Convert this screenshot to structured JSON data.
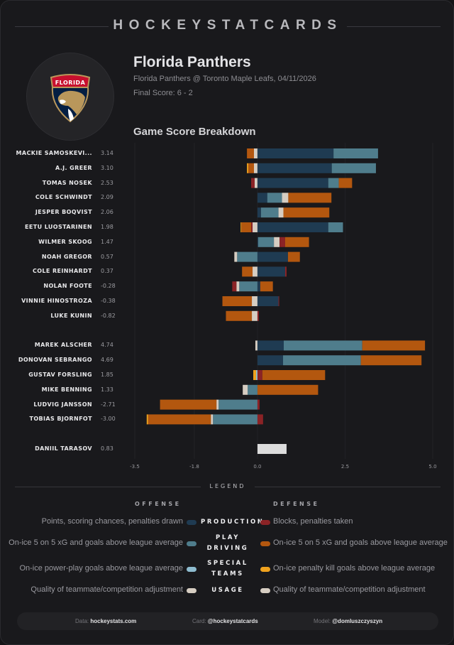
{
  "brand": "HOCKEYSTATCARDS",
  "header": {
    "team": "Florida Panthers",
    "matchup": "Florida Panthers @ Toronto Maple Leafs, 04/11/2026",
    "final_score": "Final Score: 6 - 2",
    "logo": "florida-panthers-logo",
    "logo_text": "FLORIDA"
  },
  "section_title": "Game Score Breakdown",
  "colors": {
    "off_production": "#1f3b52",
    "off_play_driving": "#4f7d8c",
    "off_special_teams": "#8ebccf",
    "off_usage": "#d6cdc2",
    "def_production": "#8b2326",
    "def_play_driving": "#b3570f",
    "def_special_teams": "#efa21e",
    "def_usage": "#d6cdc2",
    "goalie": "#dcdcdc"
  },
  "chart_data": {
    "type": "bar",
    "orientation": "horizontal-stacked-diverging",
    "title": "Game Score Breakdown",
    "xlabel": "",
    "ylabel": "",
    "xlim": [
      -3.5,
      5.0
    ],
    "xticks": [
      -3.5,
      -1.8,
      0.0,
      2.5,
      5.0
    ],
    "xtick_labels": [
      "-3.5",
      "-1.8",
      "0.0",
      "2.5",
      "5.0"
    ],
    "grid": true,
    "segment_keys": [
      "off_production",
      "off_play_driving",
      "off_special_teams",
      "off_usage",
      "def_production",
      "def_play_driving",
      "def_special_teams",
      "def_usage",
      "goalie"
    ],
    "groups": [
      {
        "name": "forwards",
        "players": [
          {
            "name": "MACKIE SAMOSKEVI...",
            "score": "3.14",
            "segments": {
              "def_play_driving": -0.2,
              "off_usage": -0.1,
              "off_production": 2.17,
              "off_play_driving": 1.27
            }
          },
          {
            "name": "A.J. GREER",
            "score": "3.10",
            "segments": {
              "def_special_teams": -0.04,
              "def_play_driving": -0.16,
              "off_usage": -0.1,
              "off_production": 2.12,
              "off_play_driving": 1.26
            }
          },
          {
            "name": "TOMAS NOSEK",
            "score": "2.53",
            "segments": {
              "def_production": -0.1,
              "off_usage": -0.08,
              "off_production": 2.02,
              "off_play_driving": 0.3,
              "def_play_driving": 0.38
            }
          },
          {
            "name": "COLE SCHWINDT",
            "score": "2.09",
            "segments": {
              "off_production": 0.28,
              "off_play_driving": 0.42,
              "off_usage": 0.18,
              "def_play_driving": 1.23
            }
          },
          {
            "name": "JESPER BOQVIST",
            "score": "2.06",
            "segments": {
              "off_production": 0.1,
              "off_play_driving": 0.5,
              "off_usage": 0.14,
              "def_play_driving": 1.31
            }
          },
          {
            "name": "EETU LUOSTARINEN",
            "score": "1.98",
            "segments": {
              "def_special_teams": -0.02,
              "def_play_driving": -0.28,
              "def_production": -0.04,
              "off_usage": -0.14,
              "off_production": 2.02,
              "off_play_driving": 0.42
            }
          },
          {
            "name": "WILMER SKOOG",
            "score": "1.47",
            "segments": {
              "off_production": 0.02,
              "off_play_driving": 0.45,
              "off_usage": 0.16,
              "def_production": 0.16,
              "def_play_driving": 0.68
            }
          },
          {
            "name": "NOAH GREGOR",
            "score": "0.57",
            "segments": {
              "off_usage": -0.08,
              "off_play_driving": -0.58,
              "off_production": 0.87,
              "def_play_driving": 0.34
            }
          },
          {
            "name": "COLE REINHARDT",
            "score": "0.37",
            "segments": {
              "def_play_driving": -0.3,
              "off_usage": -0.14,
              "off_production": 0.79,
              "def_production": 0.04
            }
          },
          {
            "name": "NOLAN FOOTE",
            "score": "-0.28",
            "segments": {
              "def_production": -0.12,
              "off_usage": -0.08,
              "off_play_driving": -0.52,
              "off_production": 0.08,
              "def_play_driving": 0.36
            }
          },
          {
            "name": "VINNIE HINOSTROZA",
            "score": "-0.38",
            "segments": {
              "def_play_driving": -0.84,
              "off_usage": -0.16,
              "off_production": 0.6,
              "def_production": 0.02
            }
          },
          {
            "name": "LUKE KUNIN",
            "score": "-0.82",
            "segments": {
              "def_play_driving": -0.74,
              "off_usage": -0.16,
              "def_production": 0.04
            }
          }
        ]
      },
      {
        "name": "defense",
        "players": [
          {
            "name": "MAREK ALSCHER",
            "score": "4.74",
            "segments": {
              "off_usage": -0.06,
              "off_production": 0.75,
              "off_play_driving": 2.24,
              "def_play_driving": 1.79
            }
          },
          {
            "name": "DONOVAN SEBRANGO",
            "score": "4.69",
            "segments": {
              "off_production": 0.73,
              "off_play_driving": 2.22,
              "def_play_driving": 1.73
            }
          },
          {
            "name": "GUSTAV FORSLING",
            "score": "1.85",
            "segments": {
              "def_special_teams": -0.08,
              "off_special_teams": -0.04,
              "def_production": 0.14,
              "def_play_driving": 1.79
            }
          },
          {
            "name": "MIKE BENNING",
            "score": "1.33",
            "segments": {
              "off_usage": -0.14,
              "off_play_driving": -0.28,
              "def_play_driving": 1.73
            }
          },
          {
            "name": "LUDVIG JANSSON",
            "score": "-2.71",
            "segments": {
              "def_play_driving": -1.61,
              "off_usage": -0.06,
              "off_play_driving": -1.11,
              "def_production": 0.06
            }
          },
          {
            "name": "TOBIAS BJORNFOT",
            "score": "-3.00",
            "segments": {
              "def_special_teams": -0.04,
              "def_play_driving": -1.79,
              "off_usage": -0.06,
              "off_play_driving": -1.27,
              "def_production": 0.16
            }
          }
        ]
      },
      {
        "name": "goalies",
        "players": [
          {
            "name": "DANIIL TARASOV",
            "score": "0.83",
            "segments": {
              "goalie": 0.83
            }
          }
        ]
      }
    ]
  },
  "legend": {
    "title": "LEGEND",
    "offense_title": "OFFENSE",
    "defense_title": "DEFENSE",
    "rows": [
      {
        "category": [
          "PRODUCTION"
        ],
        "offense": "Points, scoring chances, penalties drawn",
        "defense": "Blocks, penalties taken",
        "off_key": "off_production",
        "def_key": "def_production"
      },
      {
        "category": [
          "PLAY",
          "DRIVING"
        ],
        "offense": "On-ice 5 on 5 xG and goals above league average",
        "defense": "On-ice 5 on 5 xG and goals above league average",
        "off_key": "off_play_driving",
        "def_key": "def_play_driving"
      },
      {
        "category": [
          "SPECIAL",
          "TEAMS"
        ],
        "offense": "On-ice power-play goals above league average",
        "defense": "On-ice penalty kill goals above league average",
        "off_key": "off_special_teams",
        "def_key": "def_special_teams"
      },
      {
        "category": [
          "USAGE"
        ],
        "offense": "Quality of teammate/competition adjustment",
        "defense": "Quality of teammate/competition adjustment",
        "off_key": "off_usage",
        "def_key": "def_usage"
      }
    ]
  },
  "footer": {
    "data_label": "Data:",
    "data_value": "hockeystats.com",
    "card_label": "Card:",
    "card_value": "@hockeystatcards",
    "model_label": "Model:",
    "model_value": "@domluszczyszyn"
  }
}
